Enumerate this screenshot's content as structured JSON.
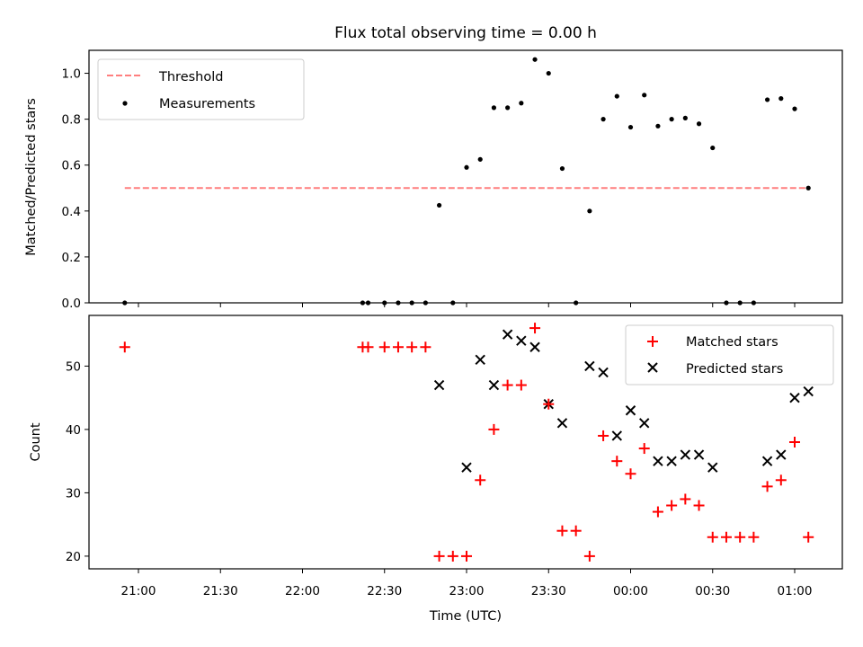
{
  "chart_data": [
    {
      "type": "scatter",
      "title": "Flux total observing time = 0.00 h",
      "xlabel": "",
      "ylabel": "Matched/Predicted stars",
      "ylim": [
        0,
        1.1
      ],
      "yticks": [
        "0.0",
        "0.2",
        "0.4",
        "0.6",
        "0.8",
        "1.0"
      ],
      "legend": {
        "placement": "top-left",
        "entries": [
          "Threshold",
          "Measurements"
        ]
      },
      "threshold": {
        "name": "Threshold",
        "y": 0.5,
        "x_start": "20:55",
        "x_end": "01:05",
        "color": "#ff7f7f"
      },
      "series": [
        {
          "name": "Measurements",
          "color": "#000000",
          "x": [
            "20:55",
            "22:22",
            "22:24",
            "22:30",
            "22:35",
            "22:40",
            "22:45",
            "22:50",
            "22:55",
            "23:00",
            "23:05",
            "23:10",
            "23:15",
            "23:20",
            "23:25",
            "23:30",
            "23:35",
            "23:40",
            "23:45",
            "23:50",
            "23:55",
            "00:00",
            "00:05",
            "00:10",
            "00:15",
            "00:20",
            "00:25",
            "00:30",
            "00:35",
            "00:40",
            "00:45",
            "00:50",
            "00:55",
            "01:00",
            "01:05"
          ],
          "y": [
            0,
            0,
            0,
            0,
            0,
            0,
            0,
            0.425,
            0,
            0.59,
            0.625,
            0.85,
            0.85,
            0.87,
            1.06,
            1.0,
            0.585,
            0,
            0.4,
            0.8,
            0.9,
            0.765,
            0.905,
            0.77,
            0.8,
            0.805,
            0.78,
            0.675,
            0,
            0,
            0,
            0.885,
            0.89,
            0.845,
            0.5
          ]
        }
      ]
    },
    {
      "type": "scatter",
      "title": "",
      "xlabel": "Time (UTC)",
      "ylabel": "Count",
      "ylim": [
        18,
        58
      ],
      "yticks": [
        "20",
        "30",
        "40",
        "50"
      ],
      "xticks": [
        "21:00",
        "21:30",
        "22:00",
        "22:30",
        "23:00",
        "23:30",
        "00:00",
        "00:30",
        "01:00"
      ],
      "legend": {
        "placement": "top-right",
        "entries": [
          "Matched stars",
          "Predicted stars"
        ]
      },
      "series": [
        {
          "name": "Matched stars",
          "marker": "+",
          "color": "#ff0000",
          "x": [
            "20:55",
            "22:22",
            "22:24",
            "22:30",
            "22:35",
            "22:40",
            "22:45",
            "22:50",
            "22:55",
            "23:00",
            "23:05",
            "23:10",
            "23:15",
            "23:20",
            "23:25",
            "23:30",
            "23:35",
            "23:40",
            "23:45",
            "23:50",
            "23:55",
            "00:00",
            "00:05",
            "00:10",
            "00:15",
            "00:20",
            "00:25",
            "00:30",
            "00:35",
            "00:40",
            "00:45",
            "00:50",
            "00:55",
            "01:00",
            "01:05"
          ],
          "y": [
            53,
            53,
            53,
            53,
            53,
            53,
            53,
            20,
            20,
            20,
            32,
            40,
            47,
            47,
            56,
            44,
            24,
            24,
            20,
            39,
            35,
            33,
            37,
            27,
            28,
            29,
            28,
            23,
            23,
            23,
            23,
            31,
            32,
            38,
            23
          ]
        },
        {
          "name": "Predicted stars",
          "marker": "x",
          "color": "#000000",
          "x": [
            "22:50",
            "23:00",
            "23:05",
            "23:10",
            "23:15",
            "23:20",
            "23:25",
            "23:30",
            "23:35",
            "23:45",
            "23:50",
            "23:55",
            "00:00",
            "00:05",
            "00:10",
            "00:15",
            "00:20",
            "00:25",
            "00:30",
            "00:50",
            "00:55",
            "01:00",
            "01:05"
          ],
          "y": [
            47,
            34,
            51,
            47,
            55,
            54,
            53,
            44,
            41,
            50,
            49,
            39,
            43,
            41,
            35,
            35,
            36,
            36,
            34,
            35,
            36,
            45,
            46
          ]
        }
      ]
    }
  ]
}
